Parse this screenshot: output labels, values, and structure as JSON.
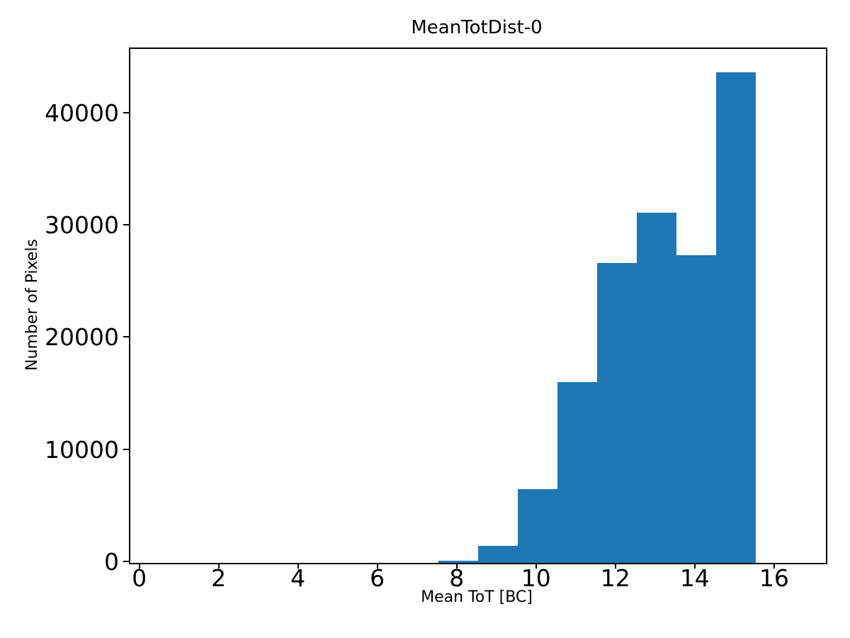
{
  "chart_data": {
    "type": "bar",
    "subtype": "histogram",
    "title": "MeanTotDist-0",
    "xlabel": "Mean ToT [BC]",
    "ylabel": "Number of Pixels",
    "bar_color": "#1f77b4",
    "axis_color": "#000000",
    "background_color": "#ffffff",
    "grid": false,
    "legend": null,
    "bin_width": 1,
    "bin_edges": [
      7.5,
      8.5,
      9.5,
      10.5,
      11.5,
      12.5,
      13.5,
      14.5,
      15.5
    ],
    "counts": [
      200,
      1500,
      6600,
      16100,
      26700,
      31200,
      27400,
      43700
    ],
    "xlim": [
      -0.26,
      17.27
    ],
    "ylim": [
      0,
      45800
    ],
    "xticks": [
      0,
      2,
      4,
      6,
      8,
      10,
      12,
      14,
      16
    ],
    "xtick_labels": [
      "0",
      "2",
      "4",
      "6",
      "8",
      "10",
      "12",
      "14",
      "16"
    ],
    "yticks": [
      0,
      10000,
      20000,
      30000,
      40000
    ],
    "ytick_labels": [
      "0",
      "10000",
      "20000",
      "30000",
      "40000"
    ]
  }
}
